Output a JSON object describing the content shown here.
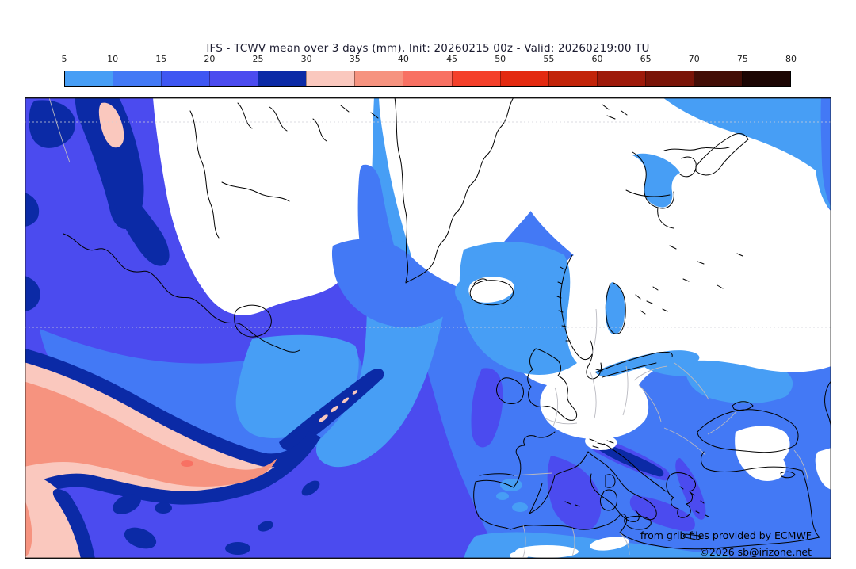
{
  "header": {
    "title": "IFS - TCWV mean over 3 days (mm), Init: 20260215 00z - Valid: 20260219:00 TU"
  },
  "colorbar": {
    "units": "mm",
    "min": 5,
    "max": 80,
    "step": 5,
    "tick_labels": [
      "5",
      "10",
      "15",
      "20",
      "25",
      "30",
      "35",
      "40",
      "45",
      "50",
      "55",
      "60",
      "65",
      "70",
      "75",
      "80"
    ],
    "segment_colors": [
      "#479EF5",
      "#4379F5",
      "#3F57F2",
      "#4B4BEF",
      "#0B2AA6",
      "#FAC8BE",
      "#F6937F",
      "#F87163",
      "#F4402A",
      "#E32A10",
      "#C22409",
      "#9E1A0A",
      "#7A1408",
      "#430D06",
      "#1C0503"
    ]
  },
  "map": {
    "attribution_line1": "from grib files provided by ECMWF",
    "attribution_line2": "©2026 sb@irizone.net",
    "region": "North Atlantic / Europe",
    "fill_meaning": {
      "white": "TCWV below 5 mm",
      "light_blue": "5-10 mm",
      "medium_blue": "10-20 mm",
      "violet_blue": "20-25 mm",
      "dark_navy": "25-30 mm",
      "light_pink": "30-35 mm",
      "salmon": "35-40 mm",
      "red_spot": "40-45 mm"
    }
  }
}
